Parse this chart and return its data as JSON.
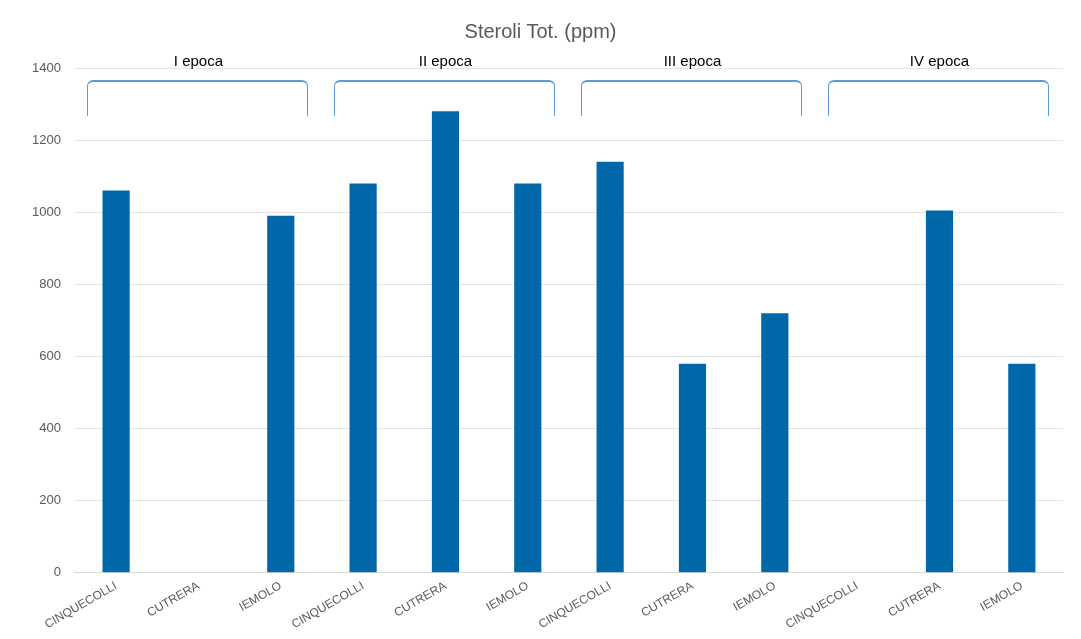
{
  "chart_data": {
    "type": "bar",
    "title": "Steroli Tot. (ppm)",
    "categories": [
      "CINQUECOLLI",
      "CUTRERA",
      "IEMOLO",
      "CINQUECOLLI",
      "CUTRERA",
      "IEMOLO",
      "CINQUECOLLI",
      "CUTRERA",
      "IEMOLO",
      "CINQUECOLLI",
      "CUTRERA",
      "IEMOLO"
    ],
    "values": [
      1060,
      null,
      990,
      1080,
      1280,
      1080,
      1140,
      580,
      720,
      null,
      1005,
      580
    ],
    "color": "#0068a8",
    "ylim": [
      0,
      1400
    ],
    "yticks": [
      0,
      200,
      400,
      600,
      800,
      1000,
      1200,
      1400
    ],
    "grid": "y",
    "annotations": [
      "I epoca",
      "II epoca",
      "III epoca",
      "IV epoca"
    ]
  }
}
